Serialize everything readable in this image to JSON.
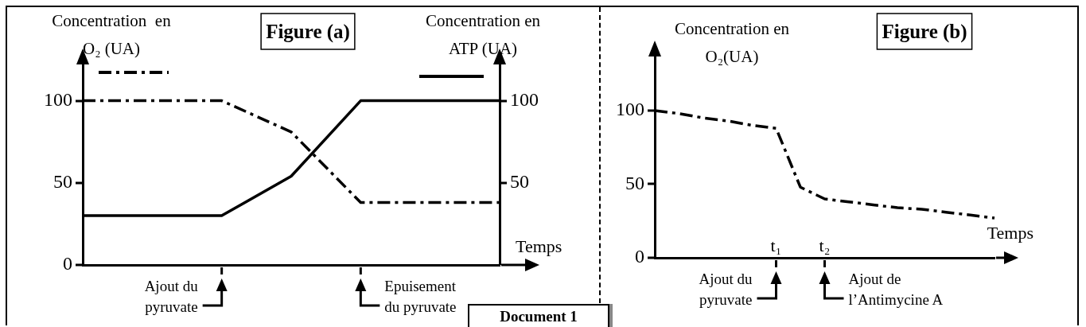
{
  "chart_data": [
    {
      "type": "line",
      "title": "Figure (a)",
      "xlabel": "Temps",
      "ylabel": "Concentration  en O₂ (UA)",
      "y2label": "Concentration en ATP (UA)",
      "categories": [
        null,
        null,
        null,
        null,
        null,
        null,
        null
      ],
      "ylim": [
        0,
        125
      ],
      "yticks": [
        0,
        50,
        100
      ],
      "y2lim": [
        0,
        125
      ],
      "y2ticks": [
        50,
        100
      ],
      "grid": false,
      "legend": false,
      "marker": "none",
      "annotations": [
        "Ajout du pyruvate",
        "Epuisement du pyruvate",
        "Document 1"
      ],
      "series": [
        {
          "color": "#000000",
          "line_style": "dashed",
          "values": [
            100,
            100,
            100,
            81,
            38,
            38,
            38
          ]
        },
        {
          "color": "#000000",
          "line_style": "solid",
          "axis": "y2",
          "values": [
            30,
            30,
            30,
            54,
            100,
            100,
            100
          ]
        }
      ]
    },
    {
      "type": "line",
      "title": "Figure (b)",
      "xlabel": "Temps",
      "ylabel": "Concentration en O₂(UA)",
      "categories": [
        null,
        null,
        null,
        null,
        null,
        "t₁",
        null,
        "t₂",
        null,
        null,
        null,
        null,
        null,
        null,
        null
      ],
      "ylim": [
        0,
        140
      ],
      "yticks": [
        0,
        50,
        100
      ],
      "grid": false,
      "legend": false,
      "marker": "none",
      "annotations": [
        "Ajout du pyruvate",
        "Ajout de l’Antimycine A"
      ],
      "series": [
        {
          "color": "#000000",
          "line_style": "dashed",
          "values": [
            100,
            98,
            95,
            93,
            90,
            88,
            48,
            40,
            38,
            36,
            34,
            33,
            31,
            29,
            27
          ]
        }
      ]
    }
  ]
}
